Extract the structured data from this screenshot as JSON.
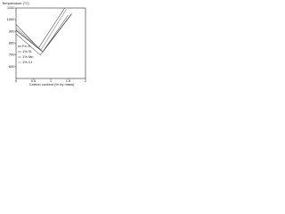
{
  "chart_data": {
    "type": "line",
    "title": "Temperature (°C)",
    "x_label": "Carbon content (% by mass)",
    "xlim": [
      0,
      2
    ],
    "xticks": [
      0,
      0.5,
      1,
      1.5,
      2
    ],
    "ylim": [
      500,
      1100
    ],
    "yticks": [
      600,
      700,
      800,
      900,
      1000,
      1100
    ],
    "grid": false,
    "series": [
      {
        "name": "Fe–C",
        "color": "#000000",
        "x": [
          0,
          0.77,
          1.6
        ],
        "values": [
          910,
          727,
          1050
        ]
      },
      {
        "name": "1% Si",
        "color": "#444444",
        "x": [
          0,
          0.65,
          1.4
        ],
        "values": [
          960,
          760,
          1100
        ]
      },
      {
        "name": "1% Mn",
        "color": "#666666",
        "x": [
          0,
          0.7,
          1.5
        ],
        "values": [
          880,
          700,
          1040
        ]
      },
      {
        "name": "1% Cr",
        "color": "#888888",
        "x": [
          0,
          0.72,
          1.45
        ],
        "values": [
          930,
          745,
          1090
        ]
      }
    ]
  }
}
